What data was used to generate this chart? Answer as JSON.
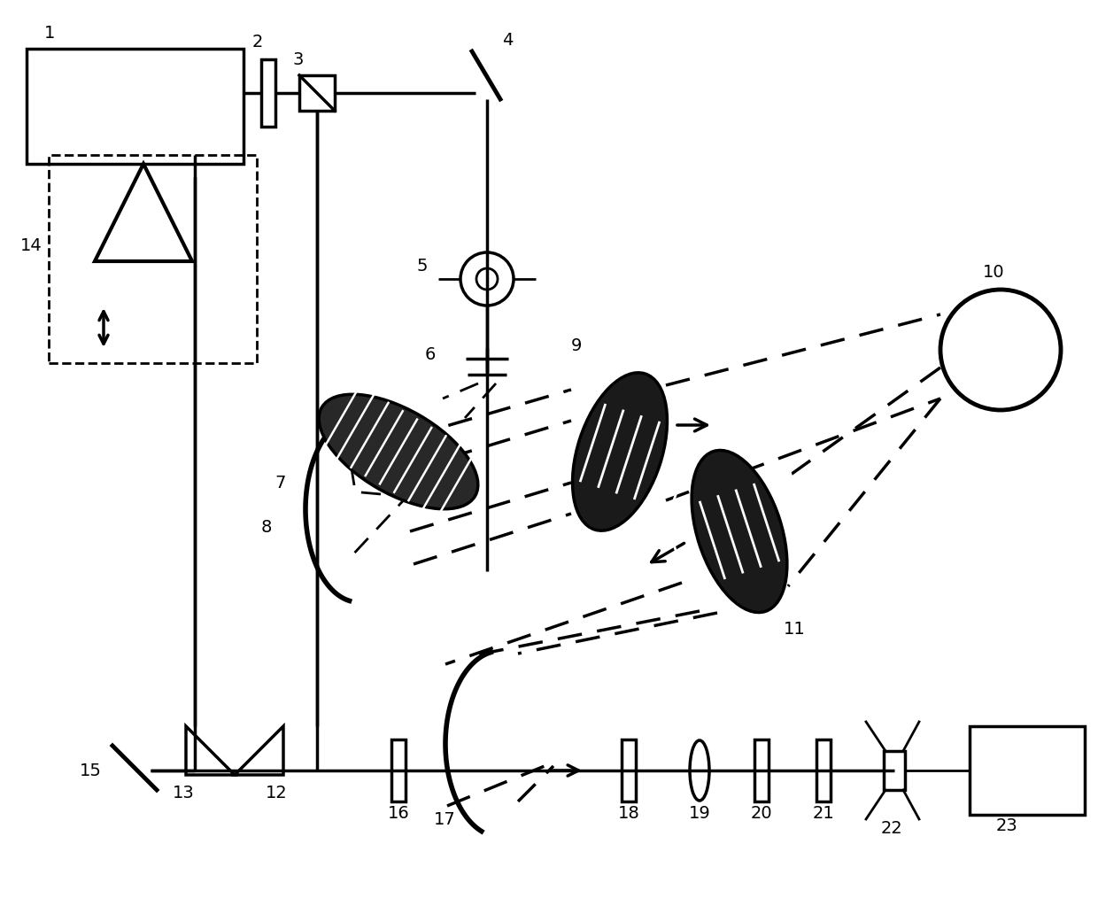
{
  "figsize": [
    12.4,
    10.14
  ],
  "dpi": 100,
  "xlim": [
    0,
    1240
  ],
  "ylim": [
    0,
    1014
  ],
  "bg": "#ffffff"
}
